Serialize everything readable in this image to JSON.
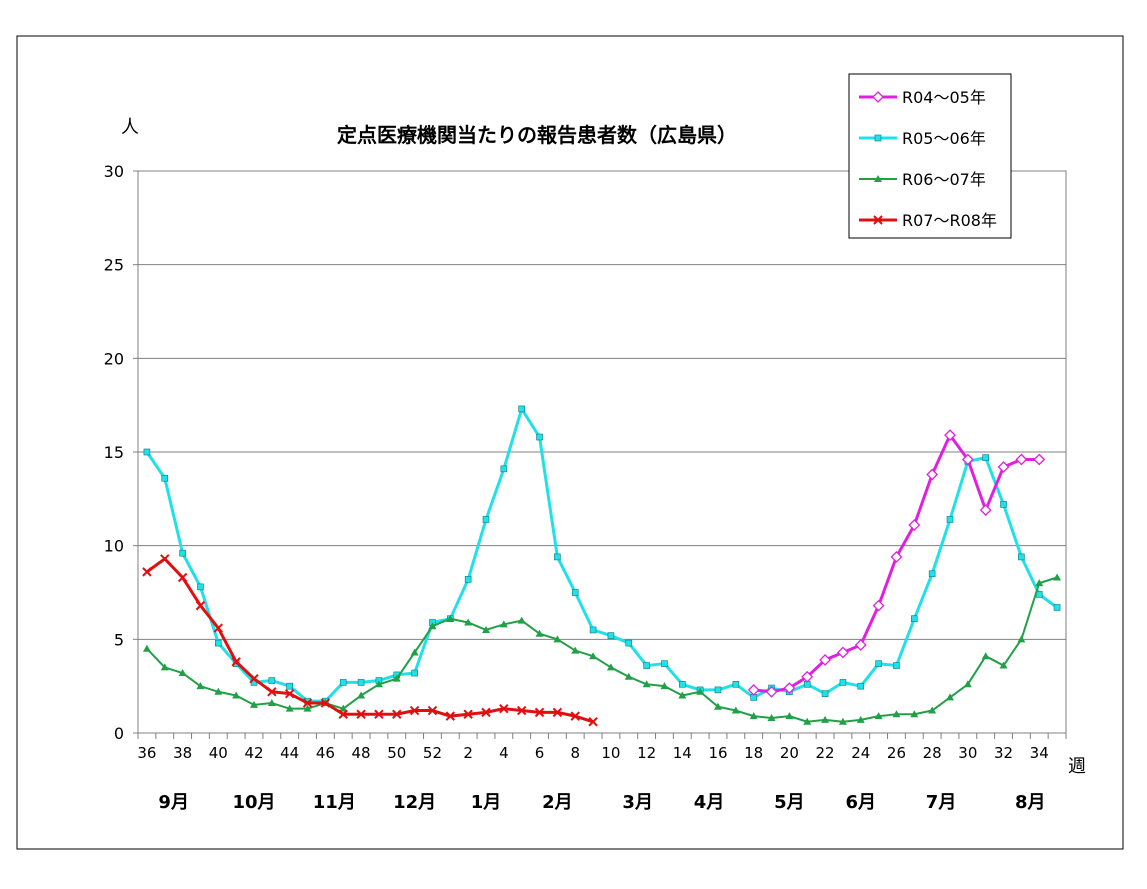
{
  "chart_data": {
    "type": "line",
    "title": "定点医療機関当たりの報告患者数（広島県）",
    "ylabel": "人",
    "xlabel": "週",
    "ylim": [
      0,
      30
    ],
    "yticks": [
      0,
      5,
      10,
      15,
      20,
      25,
      30
    ],
    "grid": true,
    "legend_position": "top-right",
    "x_tick_labels": [
      "36",
      "38",
      "40",
      "42",
      "44",
      "46",
      "48",
      "50",
      "52",
      "2",
      "4",
      "6",
      "8",
      "10",
      "12",
      "14",
      "16",
      "18",
      "20",
      "22",
      "24",
      "26",
      "28",
      "30",
      "32",
      "34"
    ],
    "months": [
      {
        "label": "9月",
        "center_index": 1.5
      },
      {
        "label": "10月",
        "center_index": 6
      },
      {
        "label": "11月",
        "center_index": 10.5
      },
      {
        "label": "12月",
        "center_index": 15
      },
      {
        "label": "1月",
        "center_index": 19
      },
      {
        "label": "2月",
        "center_index": 23
      },
      {
        "label": "3月",
        "center_index": 27.5
      },
      {
        "label": "4月",
        "center_index": 31.5
      },
      {
        "label": "5月",
        "center_index": 36
      },
      {
        "label": "6月",
        "center_index": 40
      },
      {
        "label": "7月",
        "center_index": 44.5
      },
      {
        "label": "8月",
        "center_index": 49.5
      }
    ],
    "series": [
      {
        "name": "R04～05年",
        "color": "#e020e0",
        "marker": "diamond-open",
        "start_index": 34,
        "values": [
          2.3,
          2.2,
          2.4,
          3.0,
          3.9,
          4.3,
          4.7,
          6.8,
          9.4,
          11.1,
          13.8,
          15.9,
          14.6,
          11.9,
          14.2,
          14.6,
          14.6
        ]
      },
      {
        "name": "R05～06年",
        "color": "#20e0e8",
        "marker": "square",
        "start_index": 0,
        "values": [
          15.0,
          13.6,
          9.6,
          7.8,
          4.8,
          3.7,
          2.7,
          2.8,
          2.5,
          1.7,
          1.7,
          2.7,
          2.7,
          2.8,
          3.1,
          3.2,
          5.9,
          6.1,
          8.2,
          11.4,
          14.1,
          17.3,
          15.8,
          9.4,
          7.5,
          5.5,
          5.2,
          4.8,
          3.6,
          3.7,
          2.6,
          2.3,
          2.3,
          2.6,
          1.9,
          2.4,
          2.2,
          2.6,
          2.1,
          2.7,
          2.5,
          3.7,
          3.6,
          6.1,
          8.5,
          11.4,
          14.5,
          14.7,
          12.2,
          9.4,
          7.4,
          6.7
        ]
      },
      {
        "name": "R06～07年",
        "color": "#22a048",
        "marker": "triangle",
        "start_index": 0,
        "values": [
          4.5,
          3.5,
          3.2,
          2.5,
          2.2,
          2.0,
          1.5,
          1.6,
          1.3,
          1.3,
          1.6,
          1.3,
          2.0,
          2.6,
          2.9,
          4.3,
          5.7,
          6.1,
          5.9,
          5.5,
          5.8,
          6.0,
          5.3,
          5.0,
          4.4,
          4.1,
          3.5,
          3.0,
          2.6,
          2.5,
          2.0,
          2.2,
          1.4,
          1.2,
          0.9,
          0.8,
          0.9,
          0.6,
          0.7,
          0.6,
          0.7,
          0.9,
          1.0,
          1.0,
          1.2,
          1.9,
          2.6,
          4.1,
          3.6,
          5.0,
          8.0,
          8.3
        ]
      },
      {
        "name": "R07～R08年",
        "color": "#e01010",
        "marker": "x",
        "start_index": 0,
        "values": [
          8.6,
          9.3,
          8.3,
          6.8,
          5.6,
          3.8,
          2.9,
          2.2,
          2.1,
          1.6,
          1.6,
          1.0,
          1.0,
          1.0,
          1.0,
          1.2,
          1.2,
          0.9,
          1.0,
          1.1,
          1.3,
          1.2,
          1.1,
          1.1,
          0.9,
          0.6
        ]
      }
    ]
  }
}
